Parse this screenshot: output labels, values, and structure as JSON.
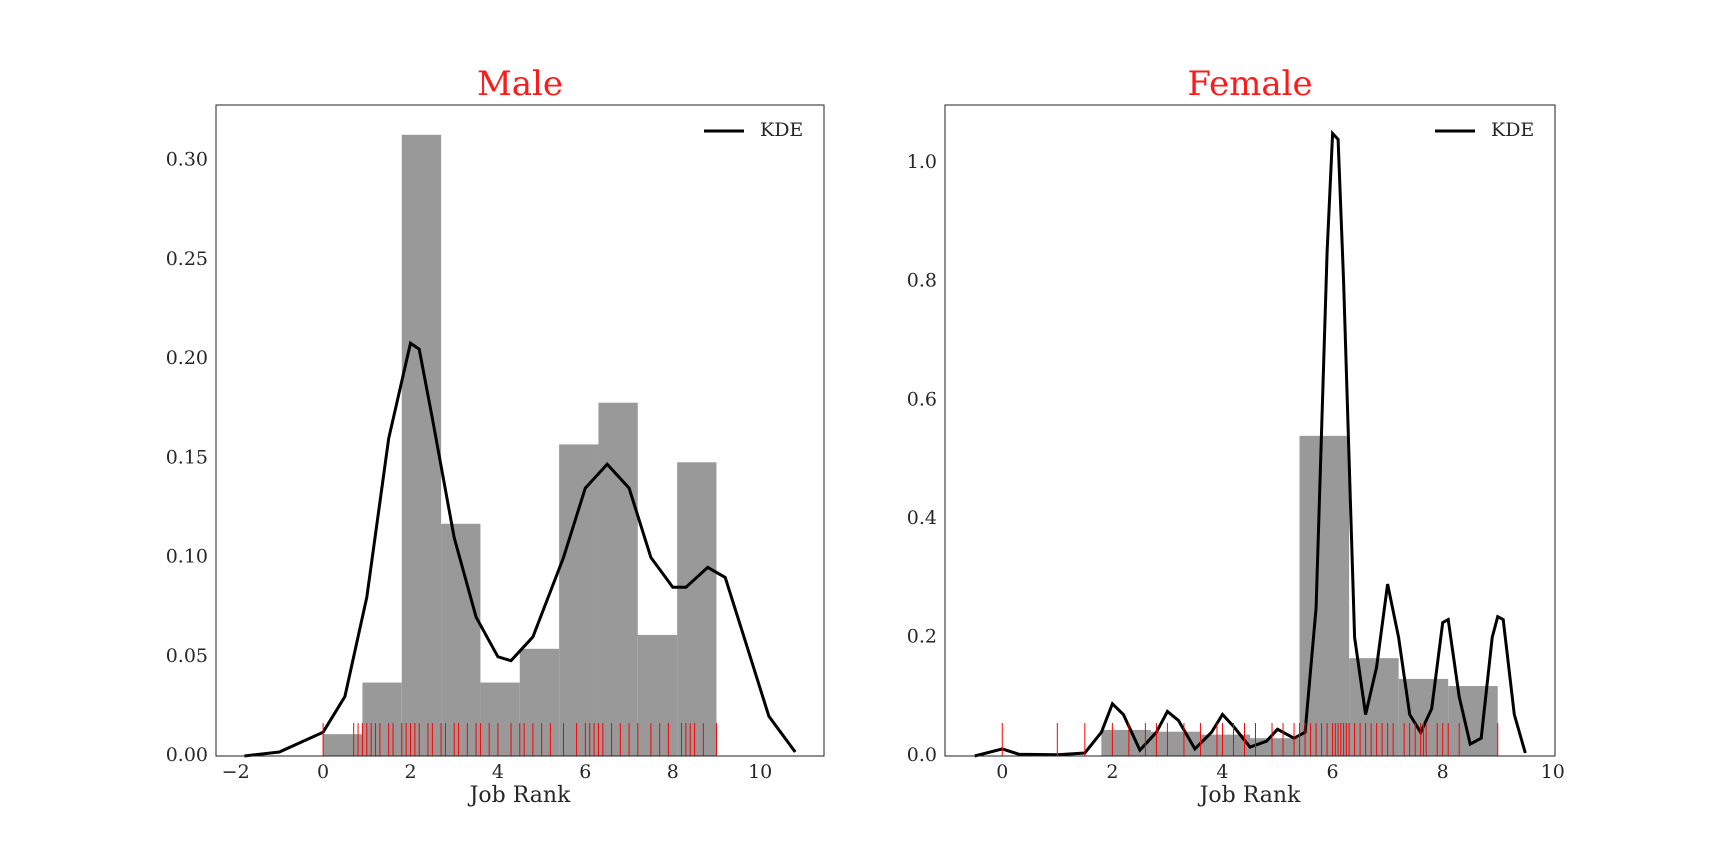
{
  "chart_data": [
    {
      "type": "histogram",
      "title": "Male",
      "x_label": "Job Rank",
      "bins": [
        0,
        0.9,
        1.8,
        2.7,
        3.6,
        4.5,
        5.4,
        6.3,
        7.2,
        8.1,
        9.0
      ],
      "values": [
        0.011,
        0.037,
        0.313,
        0.117,
        0.037,
        0.054,
        0.157,
        0.178,
        0.061,
        0.148
      ],
      "color": "#999999",
      "kde": {
        "name": "KDE",
        "color": "#000000",
        "x": [
          -1.8,
          -1,
          0,
          0.5,
          1,
          1.5,
          2,
          2.2,
          2.5,
          3,
          3.5,
          4,
          4.3,
          4.8,
          5.5,
          6,
          6.5,
          7,
          7.5,
          8,
          8.3,
          8.8,
          9.2,
          9.7,
          10.2,
          10.8
        ],
        "y": [
          0.0,
          0.002,
          0.012,
          0.03,
          0.08,
          0.16,
          0.208,
          0.205,
          0.17,
          0.11,
          0.07,
          0.05,
          0.048,
          0.06,
          0.1,
          0.135,
          0.147,
          0.135,
          0.1,
          0.085,
          0.085,
          0.095,
          0.09,
          0.055,
          0.02,
          0.002
        ]
      },
      "rug": {
        "color": "#ff0000",
        "x": [
          0,
          0.7,
          0.8,
          0.9,
          1.0,
          1.1,
          1.2,
          1.3,
          1.5,
          1.6,
          1.8,
          1.9,
          2.0,
          2.1,
          2.2,
          2.4,
          2.5,
          2.7,
          2.8,
          3.0,
          3.1,
          3.3,
          3.5,
          3.6,
          3.8,
          4.0,
          4.3,
          4.5,
          4.6,
          4.8,
          5.0,
          5.2,
          5.5,
          5.8,
          6.0,
          6.1,
          6.2,
          6.3,
          6.4,
          6.6,
          6.8,
          7.0,
          7.2,
          7.5,
          7.7,
          7.9,
          8.2,
          8.3,
          8.4,
          8.5,
          8.7,
          9.0
        ]
      },
      "xlim": [
        -2.45,
        11.46
      ],
      "ylim": [
        0,
        0.328
      ],
      "xticks": [
        {
          "value": -2,
          "label": "−2"
        },
        0,
        2,
        4,
        6,
        8,
        10
      ],
      "yticks": [
        {
          "value": 0,
          "label": "0.00"
        },
        0.05,
        {
          "value": 0.1,
          "label": "0.10"
        },
        0.15,
        {
          "value": 0.2,
          "label": "0.20"
        },
        0.25,
        {
          "value": 0.3,
          "label": "0.30"
        }
      ],
      "legend": "upper right",
      "grid": false
    },
    {
      "type": "histogram",
      "title": "Female",
      "x_label": "Job Rank",
      "bins": [
        1.8,
        2.7,
        3.6,
        4.5,
        5.4,
        6.3,
        7.2,
        8.1,
        9.0
      ],
      "values": [
        0.044,
        0.041,
        0.036,
        0.03,
        0.54,
        0.165,
        0.13,
        0.118
      ],
      "color": "#999999",
      "kde": {
        "name": "KDE",
        "color": "#000000",
        "x": [
          -0.5,
          0,
          0.3,
          1,
          1.5,
          1.8,
          2,
          2.2,
          2.5,
          2.8,
          3,
          3.2,
          3.5,
          3.8,
          4,
          4.2,
          4.5,
          4.8,
          5,
          5.3,
          5.5,
          5.7,
          5.9,
          6,
          6.1,
          6.2,
          6.4,
          6.6,
          6.8,
          7,
          7.2,
          7.4,
          7.6,
          7.8,
          8,
          8.1,
          8.3,
          8.5,
          8.7,
          8.9,
          9,
          9.1,
          9.3,
          9.5
        ],
        "y": [
          0,
          0.012,
          0.003,
          0.002,
          0.005,
          0.04,
          0.088,
          0.07,
          0.01,
          0.04,
          0.075,
          0.06,
          0.012,
          0.04,
          0.07,
          0.05,
          0.015,
          0.025,
          0.045,
          0.03,
          0.04,
          0.25,
          0.85,
          1.05,
          1.04,
          0.8,
          0.2,
          0.07,
          0.15,
          0.29,
          0.2,
          0.07,
          0.04,
          0.08,
          0.225,
          0.23,
          0.1,
          0.02,
          0.03,
          0.2,
          0.235,
          0.23,
          0.07,
          0.005
        ]
      },
      "rug": {
        "color": "#ff0000",
        "x": [
          0,
          1.0,
          1.5,
          2.0,
          2.3,
          2.6,
          2.8,
          3.0,
          3.3,
          3.6,
          3.9,
          4.0,
          4.2,
          4.4,
          4.6,
          4.9,
          5.1,
          5.3,
          5.4,
          5.5,
          5.6,
          5.7,
          5.8,
          5.9,
          6.0,
          6.05,
          6.1,
          6.15,
          6.2,
          6.25,
          6.3,
          6.4,
          6.5,
          6.6,
          6.7,
          6.8,
          6.9,
          7.0,
          7.1,
          7.3,
          7.4,
          7.5,
          7.6,
          7.65,
          7.7,
          7.9,
          8.0,
          8.1,
          8.3,
          9.0
        ]
      },
      "xlim": [
        -1.04,
        10.04
      ],
      "ylim": [
        0,
        1.098
      ],
      "xticks": [
        0,
        2,
        4,
        6,
        8,
        10
      ],
      "yticks": [
        {
          "value": 0,
          "label": "0.0"
        },
        0.2,
        0.4,
        0.6,
        0.8,
        {
          "value": 1,
          "label": "1.0"
        }
      ],
      "legend": "upper right",
      "grid": false
    }
  ]
}
